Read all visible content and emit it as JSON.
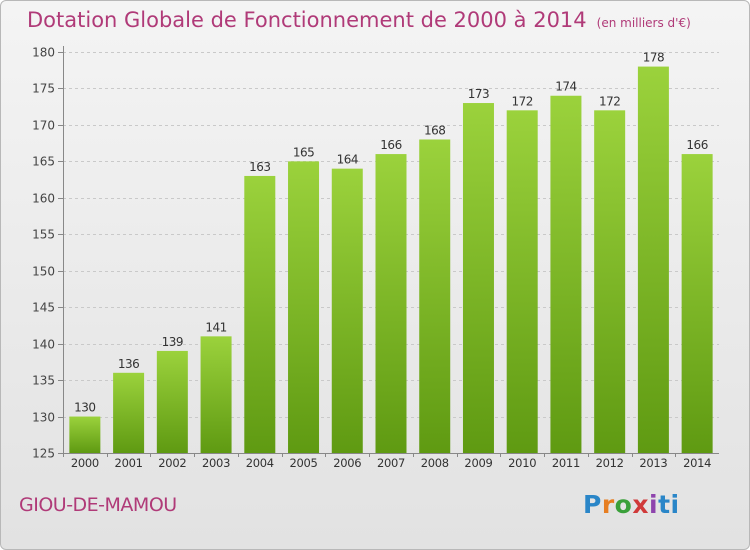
{
  "chart_data": {
    "type": "bar",
    "title": "Dotation Globale de Fonctionnement de 2000 à 2014",
    "subtitle": "(en milliers d'€)",
    "categories": [
      "2000",
      "2001",
      "2002",
      "2003",
      "2004",
      "2005",
      "2006",
      "2007",
      "2008",
      "2009",
      "2010",
      "2011",
      "2012",
      "2013",
      "2014"
    ],
    "values": [
      130,
      136,
      139,
      141,
      163,
      165,
      164,
      166,
      168,
      173,
      172,
      174,
      172,
      178,
      166
    ],
    "ylim": [
      125,
      180
    ],
    "yticks": [
      125,
      130,
      135,
      140,
      145,
      150,
      155,
      160,
      165,
      170,
      175,
      180
    ],
    "grid": true,
    "bar_color": "#74ad1f"
  },
  "footer": {
    "commune": "GIOU-DE-MAMOU",
    "brand": [
      "P",
      "r",
      "o",
      "x",
      "i",
      "ti"
    ]
  }
}
